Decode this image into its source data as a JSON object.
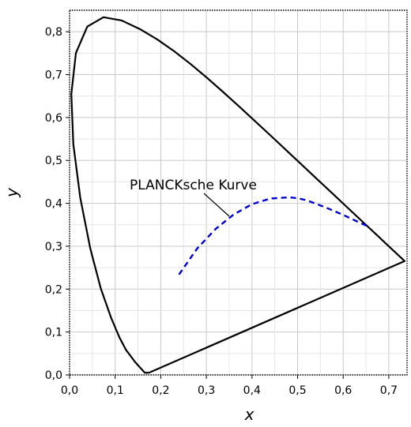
{
  "chart_data": {
    "type": "line",
    "title": "",
    "xlabel": "x",
    "ylabel": "y",
    "xlim": [
      0.0,
      0.74
    ],
    "ylim": [
      0.0,
      0.85
    ],
    "x_ticks": [
      "0,0",
      "0,1",
      "0,2",
      "0,3",
      "0,4",
      "0,5",
      "0,6",
      "0,7"
    ],
    "y_ticks": [
      "0,0",
      "0,1",
      "0,2",
      "0,3",
      "0,4",
      "0,5",
      "0,6",
      "0,7",
      "0,8"
    ],
    "grid": true,
    "series": [
      {
        "style": "solid",
        "color": "#000000",
        "x": [
          0.1741,
          0.165,
          0.144,
          0.1241,
          0.1096,
          0.0913,
          0.0687,
          0.0454,
          0.0235,
          0.0082,
          0.0039,
          0.0139,
          0.0389,
          0.0743,
          0.1142,
          0.1547,
          0.1929,
          0.2296,
          0.2658,
          0.3016,
          0.3373,
          0.3731,
          0.4087,
          0.4441,
          0.4788,
          0.5125,
          0.5448,
          0.5752,
          0.6029,
          0.627,
          0.6482,
          0.6658,
          0.6801,
          0.6915,
          0.7006,
          0.7079,
          0.714,
          0.719,
          0.723,
          0.726,
          0.7283,
          0.73,
          0.7347,
          0.1741
        ],
        "y": [
          0.005,
          0.005,
          0.0297,
          0.0578,
          0.0868,
          0.1327,
          0.2007,
          0.295,
          0.4127,
          0.5384,
          0.6548,
          0.7502,
          0.812,
          0.8338,
          0.8262,
          0.8059,
          0.7816,
          0.7543,
          0.7243,
          0.6923,
          0.6589,
          0.6245,
          0.5896,
          0.5547,
          0.5202,
          0.4866,
          0.4544,
          0.4242,
          0.3965,
          0.3725,
          0.3514,
          0.334,
          0.3197,
          0.3083,
          0.2993,
          0.292,
          0.2859,
          0.2809,
          0.277,
          0.274,
          0.2717,
          0.27,
          0.2653,
          0.005
        ]
      },
      {
        "style": "dashed",
        "color": "#0000d0",
        "x": [
          0.24,
          0.28,
          0.32,
          0.36,
          0.4,
          0.44,
          0.48,
          0.5,
          0.52,
          0.56,
          0.6,
          0.65
        ],
        "y": [
          0.234,
          0.295,
          0.34,
          0.374,
          0.398,
          0.411,
          0.414,
          0.412,
          0.407,
          0.391,
          0.373,
          0.348
        ]
      }
    ],
    "annotations": [
      {
        "text": "PLANCKsche Kurve"
      }
    ]
  }
}
